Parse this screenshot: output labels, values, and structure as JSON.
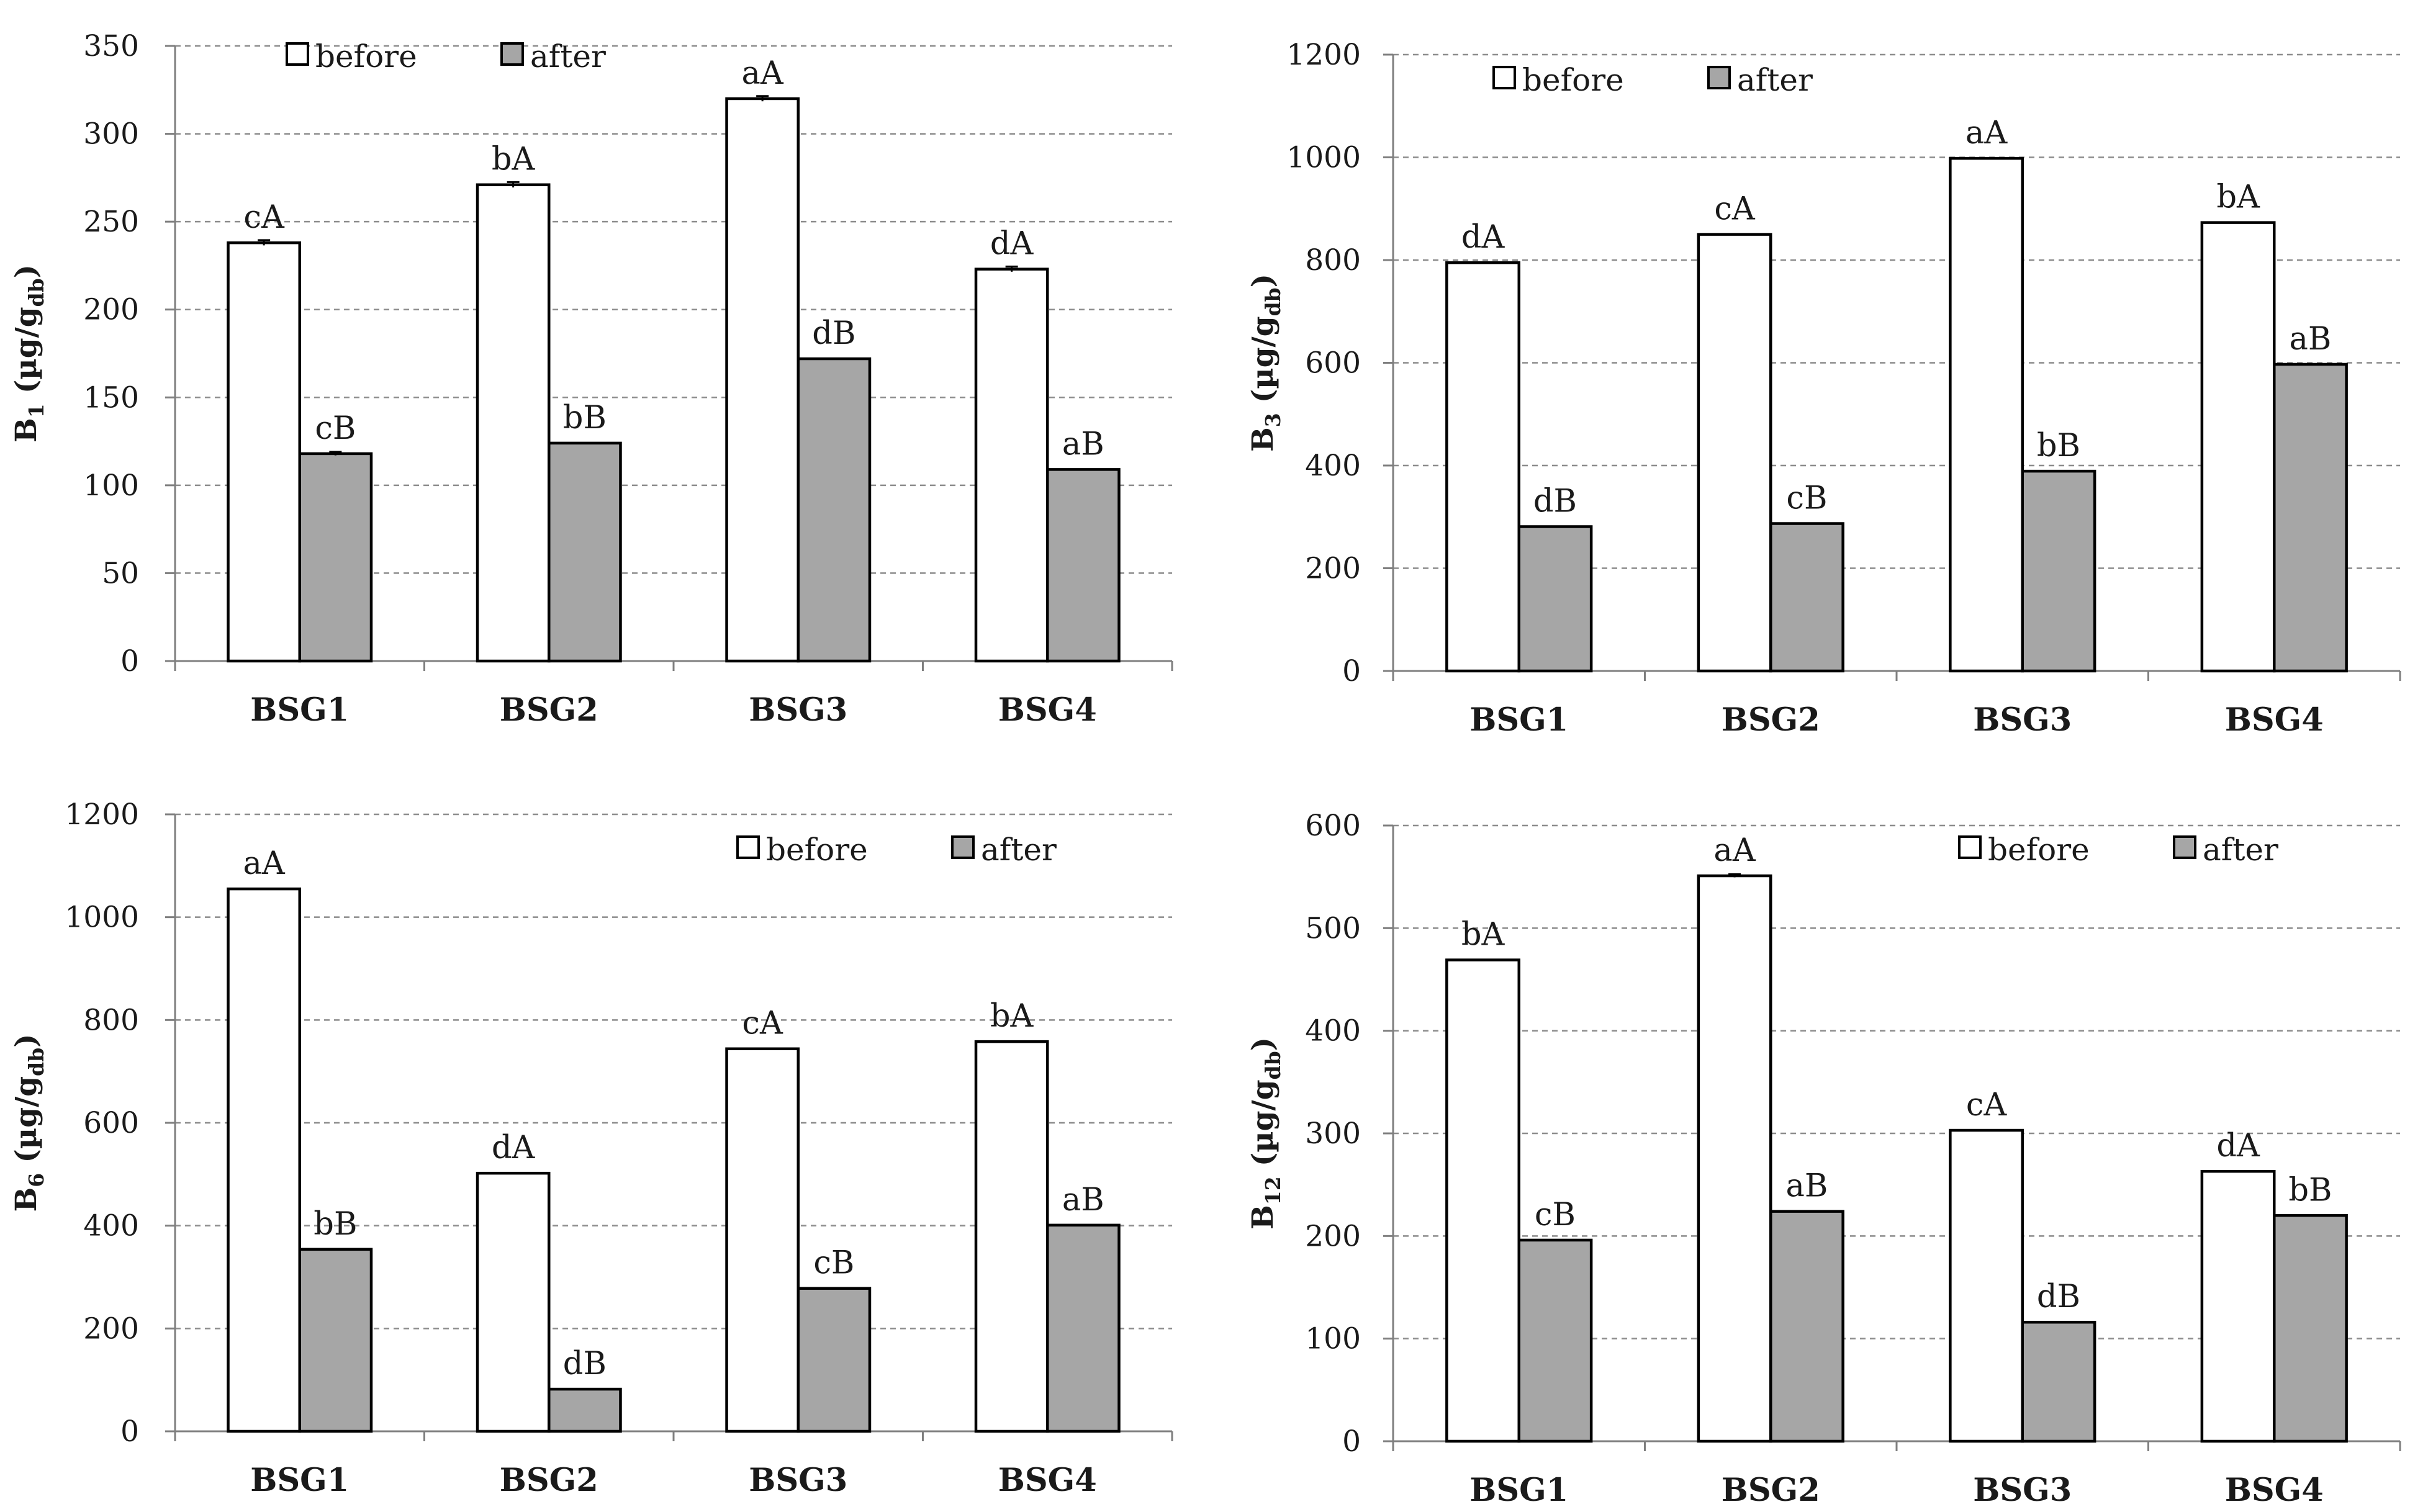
{
  "colors": {
    "before": "#ffffff",
    "after": "#a6a6a6",
    "bar_outline": "#000000",
    "gridline": "#8c8c8c"
  },
  "chart_data": [
    {
      "id": "b1",
      "type": "bar",
      "ylabel": {
        "main": "B",
        "sub": "1",
        "unit_pre": " (µg/g",
        "unit_sub": "db",
        "unit_post": ")"
      },
      "categories": [
        "BSG1",
        "BSG2",
        "BSG3",
        "BSG4"
      ],
      "ylim": [
        0,
        350
      ],
      "yticks": [
        0,
        50,
        100,
        150,
        200,
        250,
        300,
        350
      ],
      "grid": true,
      "legend": "top-left",
      "series": [
        {
          "name": "before",
          "values": [
            238,
            271,
            320,
            223
          ],
          "errors": [
            1.5,
            1.5,
            1.5,
            1.5
          ],
          "labels": [
            "cA",
            "bA",
            "aA",
            "dA"
          ]
        },
        {
          "name": "after",
          "values": [
            118,
            124,
            172,
            109
          ],
          "errors": [
            1.0,
            0,
            0,
            0
          ],
          "labels": [
            "cB",
            "bB",
            "dB",
            "aB"
          ]
        }
      ]
    },
    {
      "id": "b3",
      "type": "bar",
      "ylabel": {
        "main": "B",
        "sub": "3",
        "unit_pre": " (µg/g",
        "unit_sub": "db",
        "unit_post": ")"
      },
      "categories": [
        "BSG1",
        "BSG2",
        "BSG3",
        "BSG4"
      ],
      "ylim": [
        0,
        1200
      ],
      "yticks": [
        0,
        200,
        400,
        600,
        800,
        1000,
        1200
      ],
      "grid": true,
      "legend": "top-left",
      "series": [
        {
          "name": "before",
          "values": [
            795,
            850,
            998,
            873
          ],
          "errors": [
            0,
            0,
            0,
            0
          ],
          "labels": [
            "dA",
            "cA",
            "aA",
            "bA"
          ]
        },
        {
          "name": "after",
          "values": [
            281,
            287,
            389,
            597
          ],
          "errors": [
            0,
            0,
            0,
            0
          ],
          "labels": [
            "dB",
            "cB",
            "bB",
            "aB"
          ]
        }
      ]
    },
    {
      "id": "b6",
      "type": "bar",
      "ylabel": {
        "main": "B",
        "sub": "6",
        "unit_pre": " (µg/g",
        "unit_sub": "db",
        "unit_post": ")"
      },
      "categories": [
        "BSG1",
        "BSG2",
        "BSG3",
        "BSG4"
      ],
      "ylim": [
        0,
        1200
      ],
      "yticks": [
        0,
        200,
        400,
        600,
        800,
        1000,
        1200
      ],
      "grid": true,
      "legend": "top-right",
      "series": [
        {
          "name": "before",
          "values": [
            1055,
            502,
            744,
            758
          ],
          "errors": [
            0,
            0,
            0,
            0
          ],
          "labels": [
            "aA",
            "dA",
            "cA",
            "bA"
          ]
        },
        {
          "name": "after",
          "values": [
            354,
            82,
            278,
            401
          ],
          "errors": [
            0,
            0,
            0,
            0
          ],
          "labels": [
            "bB",
            "dB",
            "cB",
            "aB"
          ]
        }
      ]
    },
    {
      "id": "b12",
      "type": "bar",
      "ylabel": {
        "main": "B",
        "sub": "12",
        "unit_pre": " (µg/g",
        "unit_sub": "db",
        "unit_post": ")"
      },
      "categories": [
        "BSG1",
        "BSG2",
        "BSG3",
        "BSG4"
      ],
      "ylim": [
        0,
        600
      ],
      "yticks": [
        0,
        100,
        200,
        300,
        400,
        500,
        600
      ],
      "grid": true,
      "legend": "top-right",
      "series": [
        {
          "name": "before",
          "values": [
            469,
            551,
            303,
            263
          ],
          "errors": [
            0,
            1.5,
            0,
            0
          ],
          "labels": [
            "bA",
            "aA",
            "cA",
            "dA"
          ]
        },
        {
          "name": "after",
          "values": [
            196,
            224,
            116,
            220
          ],
          "errors": [
            0,
            0,
            0,
            0
          ],
          "labels": [
            "cB",
            "aB",
            "dB",
            "bB"
          ]
        }
      ]
    }
  ]
}
